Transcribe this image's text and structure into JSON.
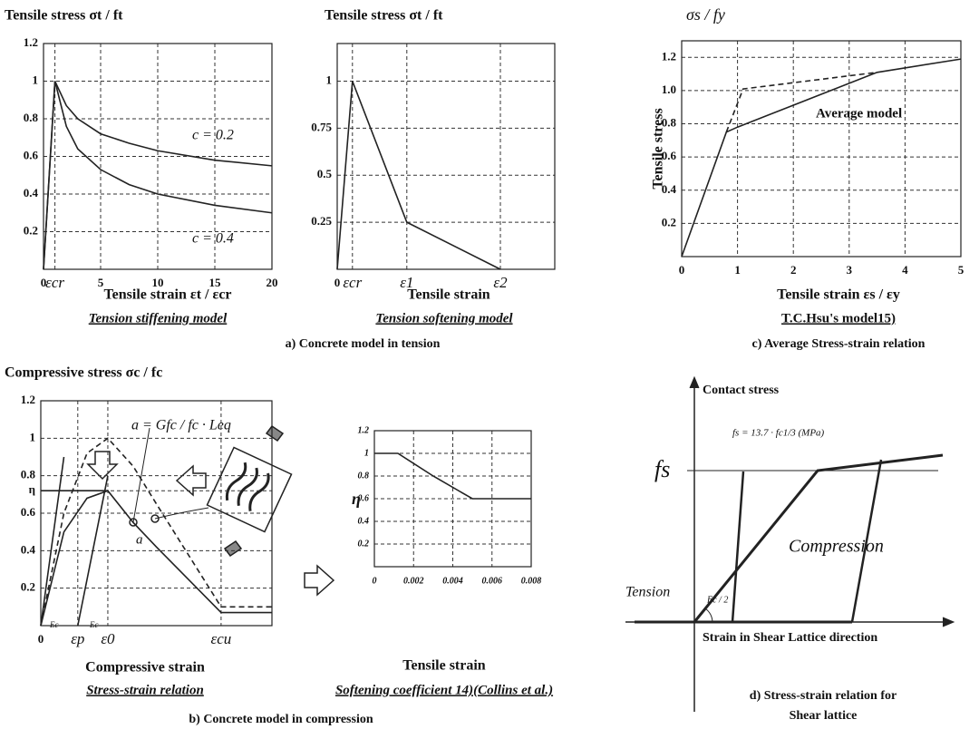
{
  "captions": {
    "a": "a) Concrete model in tension",
    "b": "b) Concrete model in compression",
    "c": "c) Average Stress-strain relation"
  },
  "shear_lattice": {
    "ylabel": "Contact stress",
    "formula": "fs = 13.7 · fc1/3 (MPa)",
    "fs": "fs",
    "compression": "Compression",
    "tension": "Tension",
    "slope": "Ec / 2",
    "xlabel": "Strain in Shear Lattice direction",
    "caption": [
      "d) Stress-strain relation for",
      "Shear lattice"
    ]
  },
  "chart_data": [
    {
      "type": "line",
      "title": "Tension stiffening model",
      "ylabel": "Tensile stress σt / ft",
      "xlabel": "Tensile strain εt / εcr",
      "xlim": [
        0,
        20
      ],
      "ylim": [
        0,
        1.2
      ],
      "xticks": [
        0,
        {
          "value": 1,
          "label": "εcr"
        },
        5,
        10,
        15,
        20
      ],
      "yticks": [
        0.2,
        0.4,
        0.6,
        0.8,
        1,
        1.2
      ],
      "grid": true,
      "annotations": [
        "c = 0.2",
        "c = 0.4"
      ],
      "series": [
        {
          "color": "#222222",
          "x": [
            0,
            1,
            2,
            3,
            5,
            7.5,
            10,
            15,
            20
          ],
          "values": [
            0,
            1,
            0.87,
            0.8,
            0.72,
            0.67,
            0.63,
            0.58,
            0.55
          ]
        },
        {
          "color": "#222222",
          "x": [
            0,
            1,
            2,
            3,
            5,
            7.5,
            10,
            15,
            20
          ],
          "values": [
            0,
            1,
            0.76,
            0.64,
            0.53,
            0.45,
            0.4,
            0.34,
            0.3
          ]
        }
      ]
    },
    {
      "type": "line",
      "title": "Tension softening model",
      "ylabel": "Tensile stress σt / ft",
      "xlabel": "Tensile strain",
      "xlim": [
        0,
        1
      ],
      "ylim": [
        0,
        1.2
      ],
      "xticks": [
        0,
        {
          "value": 0.07,
          "label": "εcr"
        },
        {
          "value": 0.32,
          "label": "ε1"
        },
        {
          "value": 0.75,
          "label": "ε2"
        }
      ],
      "yticks": [
        0.25,
        0.5,
        0.75,
        1
      ],
      "grid": true,
      "series": [
        {
          "color": "#222222",
          "x": [
            0,
            0.07,
            0.32,
            0.75
          ],
          "values": [
            0,
            1,
            0.25,
            0
          ]
        }
      ]
    },
    {
      "type": "line",
      "title": "T.C.Hsu's model15)",
      "ylabel": "Tensile stress",
      "xlabel": "Tensile strain εs / εy",
      "xlim": [
        0,
        5
      ],
      "ylim": [
        0,
        1.3
      ],
      "xticks": [
        0,
        1,
        2,
        3,
        4,
        5
      ],
      "yticks": [
        0.2,
        0.4,
        0.6,
        0.8,
        {
          "value": 1,
          "label": "1.0"
        },
        1.2
      ],
      "grid": true,
      "annotations": [
        "σs / fy",
        "Average model"
      ],
      "series": [
        {
          "color": "#222222",
          "x": [
            0,
            0.8,
            1,
            3.5,
            5
          ],
          "values": [
            0,
            0.75,
            0.78,
            1.11,
            1.19
          ]
        },
        {
          "color": "#222222",
          "dash": true,
          "x": [
            0.8,
            1.1,
            3.5
          ],
          "values": [
            0.75,
            1.01,
            1.11
          ]
        }
      ]
    },
    {
      "type": "line",
      "title": "Stress-strain relation",
      "ylabel": "Compressive stress σc / fc",
      "xlabel": "Compressive strain",
      "xlim": [
        0,
        1
      ],
      "ylim": [
        0,
        1.2
      ],
      "xticks": [
        0,
        {
          "value": 0.16,
          "label": "εp"
        },
        {
          "value": 0.29,
          "label": "ε0"
        },
        {
          "value": 0.78,
          "label": "εcu"
        }
      ],
      "yticks": [
        0.2,
        0.4,
        0.6,
        {
          "value": 0.72,
          "label": "η"
        },
        0.8,
        1,
        1.2
      ],
      "grid": true,
      "annotations": [
        "a = Gfc / fc · Leq",
        "a",
        "Ec",
        "Ec"
      ],
      "series": [
        {
          "color": "#222222",
          "dash": true,
          "x": [
            0,
            0.1,
            0.2,
            0.29,
            0.4,
            0.5,
            0.78,
            1
          ],
          "values": [
            0,
            0.6,
            0.92,
            1,
            0.85,
            0.65,
            0.1,
            0.1
          ]
        },
        {
          "color": "#222222",
          "x": [
            0,
            0.1,
            0.2,
            0.29,
            0.4,
            0.5,
            0.78,
            1
          ],
          "values": [
            0,
            0.5,
            0.68,
            0.72,
            0.55,
            0.42,
            0.07,
            0.07
          ]
        },
        {
          "color": "#222222",
          "x": [
            0,
            0.1
          ],
          "values": [
            0,
            0.9
          ]
        },
        {
          "color": "#222222",
          "x": [
            0.16,
            0.29
          ],
          "values": [
            0,
            0.8
          ]
        },
        {
          "color": "#222222",
          "x": [
            0,
            0.29
          ],
          "values": [
            0.72,
            0.72
          ]
        }
      ]
    },
    {
      "type": "line",
      "title": "Softening coefficient 14)(Collins et al.)",
      "ylabel": "η",
      "xlabel": "Tensile strain",
      "xlim": [
        0,
        0.008
      ],
      "ylim": [
        0,
        1.2
      ],
      "xticks": [
        0,
        0.002,
        0.004,
        0.006,
        0.008
      ],
      "yticks": [
        0.2,
        0.4,
        0.6,
        0.8,
        1,
        1.2
      ],
      "grid": true,
      "series": [
        {
          "color": "#222222",
          "x": [
            0,
            0.0012,
            0.003,
            0.005,
            0.008
          ],
          "values": [
            1,
            1,
            0.8,
            0.6,
            0.6
          ]
        }
      ]
    }
  ]
}
